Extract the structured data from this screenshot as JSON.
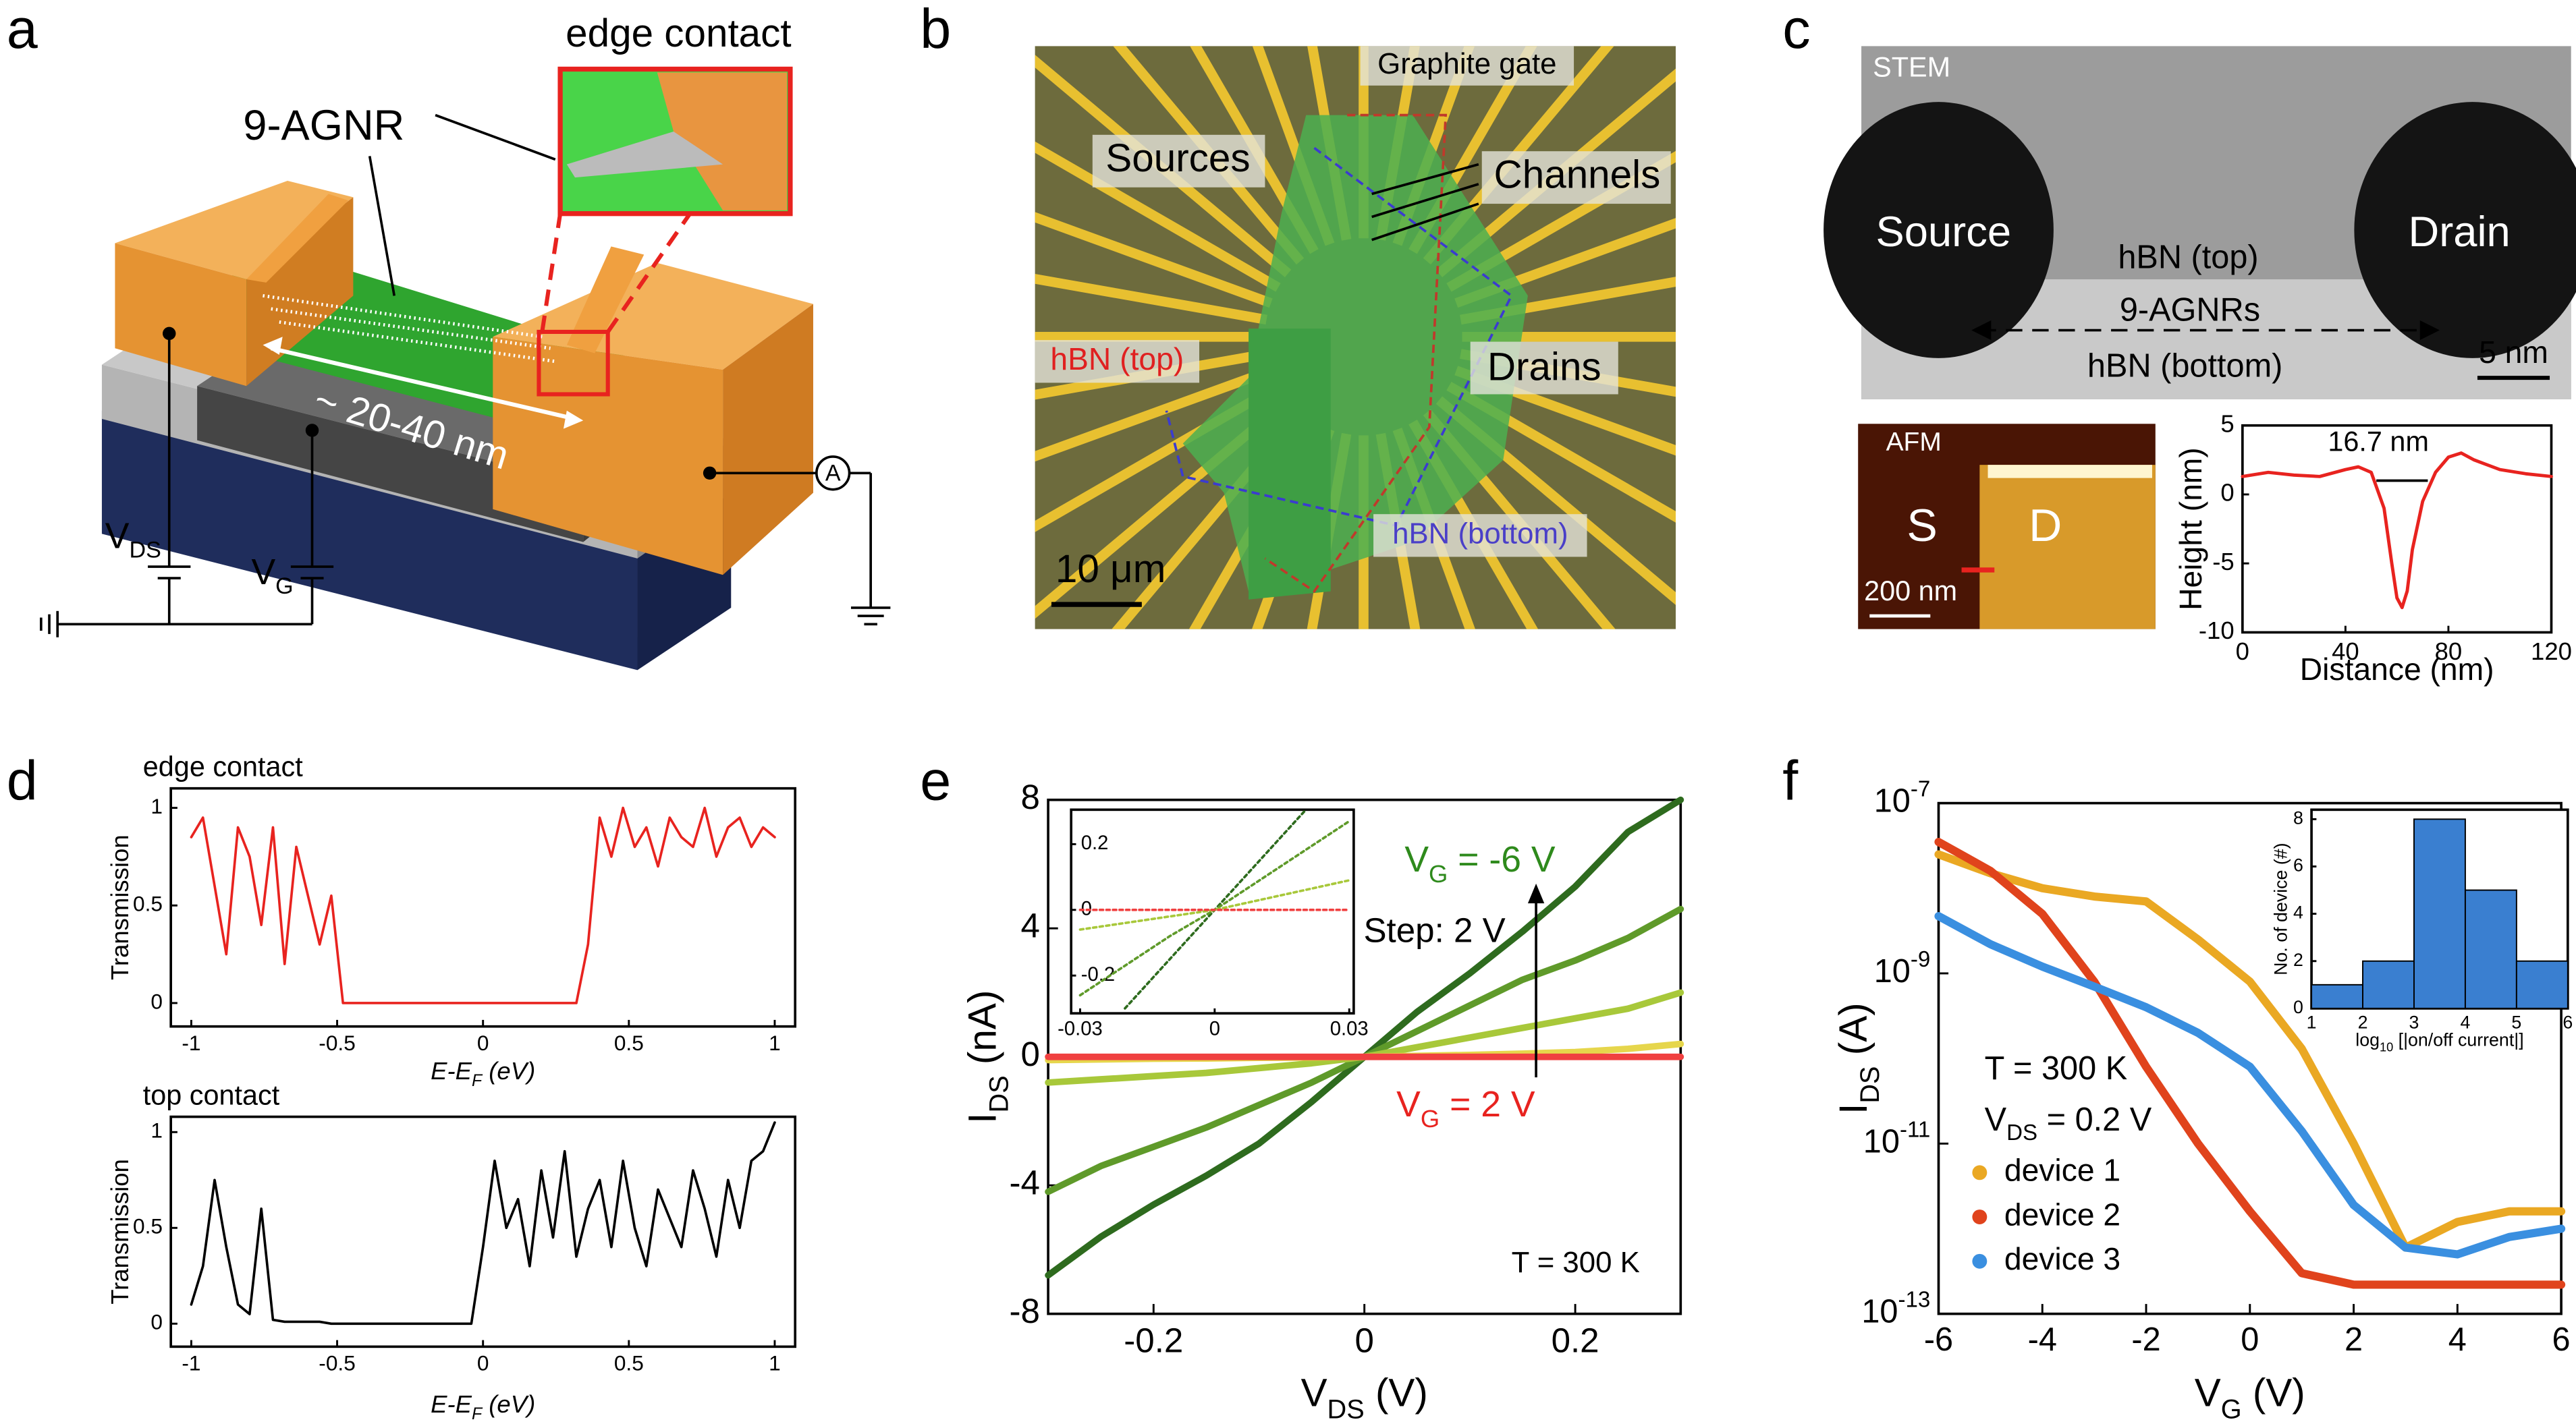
{
  "panels": {
    "a": {
      "label": "a",
      "inset_title": "edge contact",
      "ribbon": "9-AGNR",
      "channel_length": "~ 20-40 nm",
      "v_ds": [
        "V",
        "DS"
      ],
      "v_g": [
        "V",
        "G"
      ],
      "ammeter": "A"
    },
    "b": {
      "label": "b",
      "gate": "Graphite gate",
      "sources": "Sources",
      "channels": "Channels",
      "hbn_top": "hBN (top)",
      "drains": "Drains",
      "hbn_bottom": "hBN (bottom)",
      "scale": "10 μm"
    },
    "c": {
      "label": "c",
      "stem": "STEM",
      "source": "Source",
      "drain": "Drain",
      "hbn_top": "hBN (top)",
      "ribbons": "9-AGNRs",
      "hbn_bottom": "hBN (bottom)",
      "stem_scale": "5 nm",
      "afm": "AFM",
      "s": "S",
      "d": "D",
      "afm_scale": "200 nm"
    },
    "d": {
      "label": "d"
    },
    "e": {
      "label": "e"
    },
    "f": {
      "label": "f"
    }
  },
  "chart_data": [
    {
      "type": "line",
      "xlabel": "Distance (nm)",
      "ylabel": "Height (nm)",
      "annotation": "16.7 nm",
      "x": [
        0,
        10,
        20,
        30,
        40,
        45,
        50,
        55,
        58,
        60,
        62,
        64,
        66,
        70,
        75,
        80,
        85,
        90,
        100,
        110,
        120
      ],
      "series": [
        {
          "color": "#e8231f",
          "values": [
            1.3,
            1.6,
            1.4,
            1.3,
            1.8,
            2.0,
            1.6,
            -1,
            -5,
            -7.5,
            -8.2,
            -7,
            -4,
            -0.5,
            1.6,
            2.7,
            3.0,
            2.5,
            1.8,
            1.5,
            1.3
          ]
        }
      ],
      "xlim": [
        0,
        120
      ],
      "ylim": [
        -10,
        5
      ],
      "xticks": [
        0,
        40,
        80,
        120
      ],
      "yticks": [
        -10,
        -5,
        0,
        5
      ]
    },
    {
      "type": "line",
      "title": "edge contact",
      "xlabel": [
        "E-E",
        "F",
        " (eV)"
      ],
      "ylabel": "Transmission",
      "x": [
        -1,
        -0.96,
        -0.92,
        -0.88,
        -0.84,
        -0.8,
        -0.76,
        -0.72,
        -0.68,
        -0.64,
        -0.6,
        -0.56,
        -0.52,
        -0.48,
        -0.44,
        -0.4,
        -0.36,
        -0.32,
        -0.28,
        -0.24,
        -0.2,
        -0.16,
        -0.12,
        -0.08,
        -0.04,
        0,
        0.04,
        0.08,
        0.12,
        0.16,
        0.2,
        0.24,
        0.28,
        0.32,
        0.36,
        0.4,
        0.44,
        0.48,
        0.52,
        0.56,
        0.6,
        0.64,
        0.68,
        0.72,
        0.76,
        0.8,
        0.84,
        0.88,
        0.92,
        0.96,
        1
      ],
      "series": [
        {
          "color": "#e8231f",
          "values": [
            0.85,
            0.95,
            0.6,
            0.25,
            0.9,
            0.75,
            0.4,
            0.9,
            0.2,
            0.8,
            0.55,
            0.3,
            0.55,
            0,
            0,
            0,
            0,
            0,
            0,
            0,
            0,
            0,
            0,
            0,
            0,
            0,
            0,
            0,
            0,
            0,
            0,
            0,
            0,
            0,
            0.3,
            0.95,
            0.75,
            1.0,
            0.8,
            0.9,
            0.7,
            0.95,
            0.85,
            0.8,
            1.0,
            0.75,
            0.9,
            0.95,
            0.8,
            0.9,
            0.85
          ]
        }
      ],
      "xlim": [
        -1.07,
        1.07
      ],
      "ylim": [
        -0.12,
        1.1
      ],
      "xticks": [
        -1,
        -0.5,
        0,
        0.5,
        1
      ],
      "yticks": [
        0,
        0.5,
        1
      ]
    },
    {
      "type": "line",
      "title": "top contact",
      "xlabel": [
        "E-E",
        "F",
        " (eV)"
      ],
      "ylabel": "Transmission",
      "x": [
        -1,
        -0.96,
        -0.92,
        -0.88,
        -0.84,
        -0.8,
        -0.76,
        -0.72,
        -0.68,
        -0.64,
        -0.6,
        -0.56,
        -0.52,
        -0.48,
        -0.44,
        -0.4,
        -0.36,
        -0.32,
        -0.28,
        -0.24,
        -0.2,
        -0.16,
        -0.12,
        -0.08,
        -0.04,
        0,
        0.04,
        0.08,
        0.12,
        0.16,
        0.2,
        0.24,
        0.28,
        0.32,
        0.36,
        0.4,
        0.44,
        0.48,
        0.52,
        0.56,
        0.6,
        0.64,
        0.68,
        0.72,
        0.76,
        0.8,
        0.84,
        0.88,
        0.92,
        0.96,
        1
      ],
      "series": [
        {
          "color": "#000000",
          "values": [
            0.1,
            0.3,
            0.75,
            0.4,
            0.1,
            0.05,
            0.6,
            0.02,
            0.01,
            0.01,
            0.01,
            0.01,
            0,
            0,
            0,
            0,
            0,
            0,
            0,
            0,
            0,
            0,
            0,
            0,
            0,
            0.4,
            0.85,
            0.5,
            0.65,
            0.3,
            0.8,
            0.45,
            0.9,
            0.35,
            0.6,
            0.75,
            0.4,
            0.85,
            0.5,
            0.3,
            0.7,
            0.55,
            0.4,
            0.8,
            0.6,
            0.35,
            0.75,
            0.5,
            0.85,
            0.9,
            1.05
          ]
        }
      ],
      "xlim": [
        -1.07,
        1.07
      ],
      "ylim": [
        -0.12,
        1.08
      ],
      "xticks": [
        -1,
        -0.5,
        0,
        0.5,
        1
      ],
      "yticks": [
        0,
        0.5,
        1
      ]
    },
    {
      "type": "line",
      "xlabel": [
        "V",
        "DS",
        " (V)"
      ],
      "ylabel": [
        "I",
        "DS",
        " (nA)"
      ],
      "annotations": [
        [
          "V",
          "G",
          " = -6 V"
        ],
        "Step: 2 V",
        [
          "V",
          "G",
          " = 2 V"
        ],
        "T = 300 K"
      ],
      "x": [
        -0.3,
        -0.25,
        -0.2,
        -0.15,
        -0.1,
        -0.05,
        0,
        0.05,
        0.1,
        0.15,
        0.2,
        0.25,
        0.3
      ],
      "series": [
        {
          "color": "#2e6b1e",
          "values": [
            -6.8,
            -5.6,
            -4.6,
            -3.7,
            -2.7,
            -1.4,
            0,
            1.4,
            2.6,
            3.9,
            5.3,
            7.0,
            8.0
          ]
        },
        {
          "color": "#5f9a2a",
          "values": [
            -4.2,
            -3.4,
            -2.8,
            -2.2,
            -1.5,
            -0.8,
            0,
            0.8,
            1.6,
            2.4,
            3.0,
            3.7,
            4.6
          ]
        },
        {
          "color": "#a8c83a",
          "values": [
            -0.8,
            -0.7,
            -0.6,
            -0.5,
            -0.35,
            -0.2,
            0,
            0.3,
            0.6,
            0.9,
            1.2,
            1.5,
            2.0
          ]
        },
        {
          "color": "#e6d64c",
          "values": [
            -0.1,
            -0.08,
            -0.06,
            -0.05,
            -0.03,
            -0.02,
            0,
            0.03,
            0.06,
            0.1,
            0.15,
            0.25,
            0.4
          ]
        },
        {
          "color": "#f04040",
          "values": [
            0,
            0,
            0,
            0,
            0,
            0,
            0,
            0,
            0,
            0,
            0,
            0,
            0
          ]
        }
      ],
      "xlim": [
        -0.3,
        0.3
      ],
      "ylim": [
        -8,
        8
      ],
      "xticks": [
        -0.2,
        0,
        0.2
      ],
      "yticks": [
        8,
        4,
        0,
        -4,
        -8
      ]
    },
    {
      "type": "line",
      "x": [
        -0.03,
        -0.02,
        -0.01,
        0,
        0.01,
        0.02,
        0.03
      ],
      "series": [
        {
          "color": "#2e6b1e",
          "values": [
            null,
            -0.3,
            -0.15,
            0,
            0.15,
            0.3,
            null
          ]
        },
        {
          "color": "#5f9a2a",
          "values": [
            -0.26,
            -0.17,
            -0.08,
            0,
            0.09,
            0.18,
            0.27
          ]
        },
        {
          "color": "#a8c83a",
          "values": [
            -0.06,
            -0.04,
            -0.02,
            0,
            0.03,
            0.06,
            0.09
          ]
        },
        {
          "color": "#f04040",
          "values": [
            0,
            0,
            0,
            0,
            0,
            0,
            0
          ]
        }
      ],
      "xlim": [
        -0.032,
        0.031
      ],
      "ylim": [
        -0.315,
        0.305
      ],
      "xticks": [
        -0.03,
        0,
        0.03
      ],
      "yticks": [
        0.2,
        0,
        -0.2
      ]
    },
    {
      "type": "line",
      "yscale": "log",
      "xlabel": [
        "V",
        "G",
        " (V)"
      ],
      "ylabel": [
        "I",
        "DS",
        " (A)"
      ],
      "annotations": [
        "T = 300 K",
        [
          "V",
          "DS",
          " = 0.2 V"
        ]
      ],
      "legend": "lower left",
      "x": [
        -6,
        -5,
        -4,
        -3,
        -2,
        -1,
        0,
        1,
        2,
        3,
        4,
        5,
        6
      ],
      "series": [
        {
          "name": "device 1",
          "color": "#eaa823",
          "values": [
            2.5e-08,
            1.5e-08,
            1e-08,
            8e-09,
            7e-09,
            2.5e-09,
            8e-10,
            1.3e-10,
            1e-11,
            6e-13,
            1.2e-12,
            1.6e-12,
            1.6e-12
          ]
        },
        {
          "name": "device 2",
          "color": "#e0431c",
          "values": [
            3.5e-08,
            1.6e-08,
            5e-09,
            8e-10,
            8e-11,
            1e-11,
            1.6e-12,
            3e-13,
            2.2e-13,
            2.2e-13,
            2.2e-13,
            2.2e-13,
            2.2e-13
          ]
        },
        {
          "name": "device 3",
          "color": "#3a8fe0",
          "values": [
            4.7e-09,
            2.2e-09,
            1.2e-09,
            7e-10,
            4e-10,
            2e-10,
            8e-11,
            1.4e-11,
            1.9e-12,
            6e-13,
            5e-13,
            8e-13,
            1e-12
          ]
        }
      ],
      "xlim": [
        -6,
        6
      ],
      "ylim": [
        1e-13,
        1e-07
      ],
      "xticks": [
        -6,
        -4,
        -2,
        0,
        2,
        4,
        6
      ],
      "yticks": [
        {
          "value": 1e-07,
          "label": [
            "10",
            "-7"
          ]
        },
        {
          "value": 1e-09,
          "label": [
            "10",
            "-9"
          ]
        },
        {
          "value": 1e-11,
          "label": [
            "10",
            "-11"
          ]
        },
        {
          "value": 1e-13,
          "label": [
            "10",
            "-13"
          ]
        }
      ]
    },
    {
      "type": "histogram",
      "xlabel": [
        "log",
        "10",
        " [|on/off current|]"
      ],
      "ylabel": "No. of device (#)",
      "color": "#3a7fd0",
      "bins": [
        1,
        2,
        3,
        4,
        5,
        6
      ],
      "values": [
        1,
        2,
        8,
        5,
        2
      ],
      "xlim": [
        1,
        6
      ],
      "ylim": [
        0,
        8.4
      ],
      "xticks": [
        1,
        2,
        3,
        4,
        5,
        6
      ],
      "yticks": [
        0,
        2,
        4,
        6,
        8
      ]
    }
  ]
}
